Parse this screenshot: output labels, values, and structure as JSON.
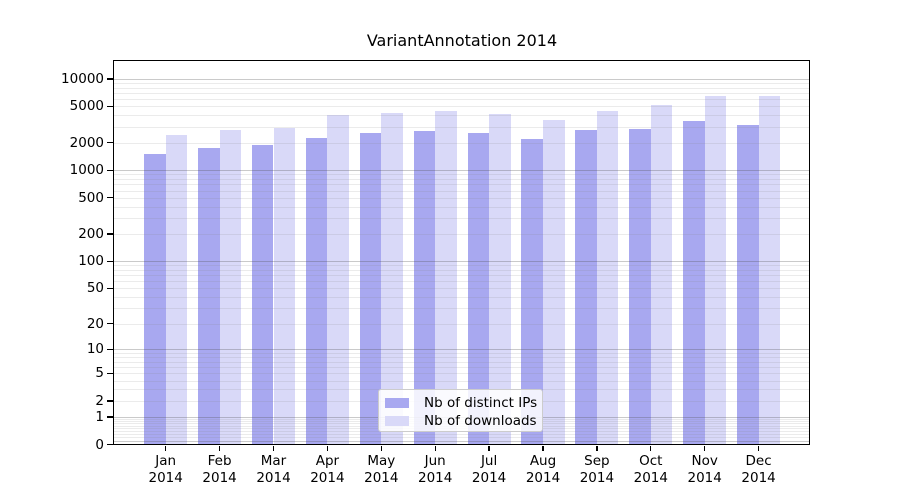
{
  "title": "VariantAnnotation 2014",
  "chart_data": {
    "type": "bar",
    "title": "VariantAnnotation 2014",
    "categories": [
      "Jan 2014",
      "Feb 2014",
      "Mar 2014",
      "Apr 2014",
      "May 2014",
      "Jun 2014",
      "Jul 2014",
      "Aug 2014",
      "Sep 2014",
      "Oct 2014",
      "Nov 2014",
      "Dec 2014"
    ],
    "series": [
      {
        "name": "Nb of distinct IPs",
        "color": "#a8a8f0",
        "values": [
          1540,
          1780,
          1900,
          2290,
          2590,
          2750,
          2600,
          2230,
          2820,
          2890,
          3480,
          3200
        ]
      },
      {
        "name": "Nb of downloads",
        "color": "#d9d9f8",
        "values": [
          2480,
          2790,
          2960,
          4040,
          4280,
          4550,
          4220,
          3590,
          4550,
          5200,
          6520,
          6520
        ]
      }
    ],
    "xlabel": "",
    "ylabel": "",
    "yscale": "log1p",
    "ylim": [
      0,
      10000
    ],
    "yticks": [
      0,
      1,
      2,
      5,
      10,
      20,
      50,
      100,
      200,
      500,
      1000,
      2000,
      5000,
      10000
    ],
    "grid": "horizontal major+minor",
    "legend_position": "inside lower center"
  },
  "colors": {
    "background": "#ffffff",
    "frame": "#000000",
    "major_grid": "#c6c6c6",
    "minor_grid": "#ebebeb",
    "bar_ips": "#a8a8f0",
    "bar_downloads": "#d9d9f8"
  }
}
